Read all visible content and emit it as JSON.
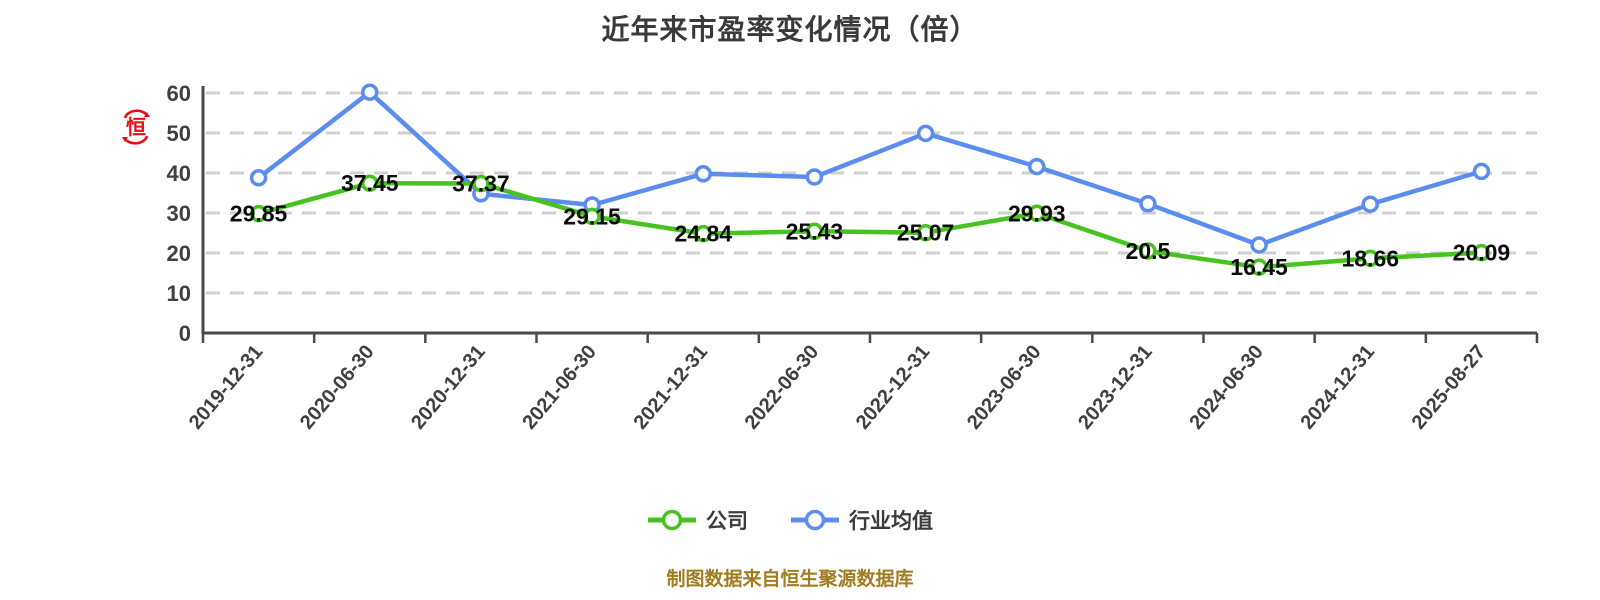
{
  "title": "近年来市盈率变化情况（倍）",
  "watermark": {
    "char": "恒",
    "color": "#e2121a"
  },
  "footer": {
    "text": "制图数据来自恒生聚源数据库",
    "color": "#a07d20"
  },
  "legend": [
    {
      "label": "公司",
      "color": "#47c21f"
    },
    {
      "label": "行业均值",
      "color": "#5b8dee"
    }
  ],
  "chart_data": {
    "type": "line",
    "title": "近年来市盈率变化情况（倍）",
    "xlabel": "",
    "ylabel": "",
    "categories": [
      "2019-12-31",
      "2020-06-30",
      "2020-12-31",
      "2021-06-30",
      "2021-12-31",
      "2022-06-30",
      "2022-12-31",
      "2023-06-30",
      "2023-12-31",
      "2024-06-30",
      "2024-12-31",
      "2025-08-27"
    ],
    "series": [
      {
        "name": "公司",
        "color": "#47c21f",
        "values": [
          29.85,
          37.45,
          37.37,
          29.15,
          24.84,
          25.43,
          25.07,
          29.93,
          20.5,
          16.45,
          18.66,
          20.09
        ],
        "labels_shown": true
      },
      {
        "name": "行业均值",
        "color": "#5b8dee",
        "values": [
          38.8,
          60.2,
          34.8,
          32.0,
          39.8,
          39.0,
          49.9,
          41.6,
          32.3,
          22.0,
          32.2,
          40.4
        ],
        "labels_shown": false
      }
    ],
    "y_ticks": [
      0,
      10,
      20,
      30,
      40,
      50,
      60
    ],
    "ylim": [
      0,
      60
    ],
    "grid": "dashed-horizontal",
    "legend_position": "bottom",
    "grid_color": "#cfcfcf",
    "axis_color": "#4a4a4a",
    "tick_label_color": "#3f3f3f",
    "value_label_color": "#0c0c0c"
  }
}
